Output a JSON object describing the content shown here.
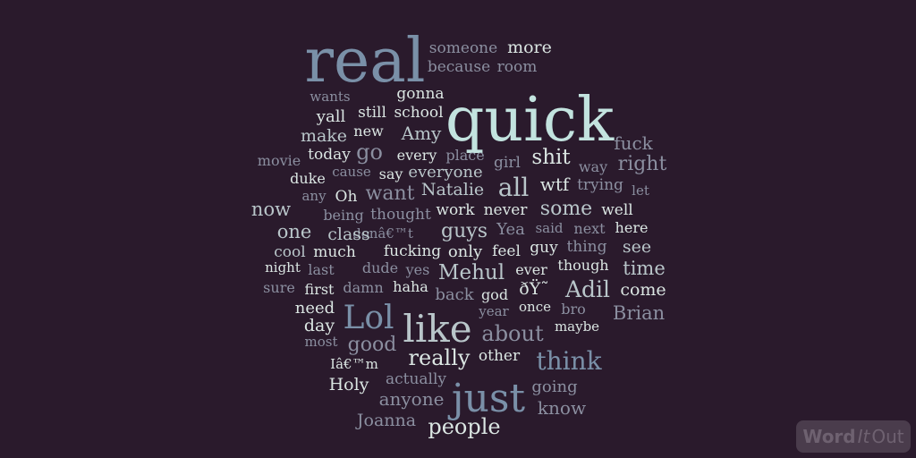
{
  "colors": {
    "background": "#2a1a2c",
    "palette": [
      "#dbe6e3",
      "#7a90a8",
      "#c3e3df",
      "#8b8fa0",
      "#b9c6ca"
    ]
  },
  "words": [
    "real",
    "quick",
    "just",
    "like",
    "Lol",
    "someone",
    "more",
    "because",
    "room",
    "wants",
    "gonna",
    "yall",
    "still",
    "school",
    "make",
    "new",
    "Amy",
    "fuck",
    "movie",
    "today",
    "go",
    "every",
    "place",
    "shit",
    "girl",
    "way",
    "right",
    "duke",
    "cause",
    "say",
    "everyone",
    "all",
    "wtf",
    "trying",
    "any",
    "Oh",
    "want",
    "Natalie",
    "let",
    "being",
    "thought",
    "work",
    "never",
    "some",
    "well",
    "now",
    "donâ€™t",
    "said",
    "next",
    "here",
    "one",
    "class",
    "guys",
    "Yea",
    "cool",
    "much",
    "fucking",
    "only",
    "feel",
    "guy",
    "thing",
    "see",
    "night",
    "last",
    "dude",
    "yes",
    "Mehul",
    "ever",
    "though",
    "time",
    "sure",
    "first",
    "damn",
    "haha",
    "back",
    "god",
    "ðŸ˜",
    "Adil",
    "come",
    "need",
    "once",
    "bro",
    "Brian",
    "day",
    "year",
    "maybe",
    "most",
    "good",
    "about",
    "Iâ€™m",
    "other",
    "think",
    "really",
    "Holy",
    "actually",
    "going",
    "anyone",
    "know",
    "Joanna",
    "people"
  ],
  "logo": {
    "part1": "Word",
    "part2": "It",
    "part3": "Out"
  }
}
